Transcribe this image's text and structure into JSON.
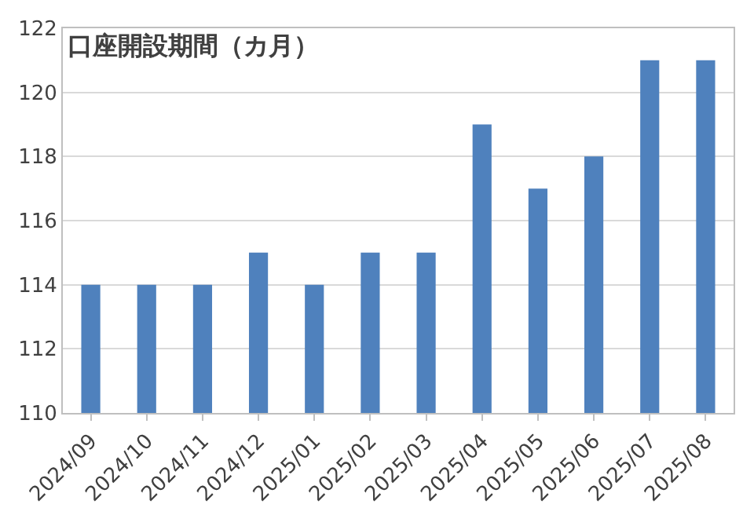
{
  "chart_data": {
    "type": "bar",
    "title": "口座開設期間（カ月）",
    "categories": [
      "2024/09",
      "2024/10",
      "2024/11",
      "2024/12",
      "2025/01",
      "2025/02",
      "2025/03",
      "2025/04",
      "2025/05",
      "2025/06",
      "2025/07",
      "2025/08"
    ],
    "values": [
      114,
      114,
      114,
      115,
      114,
      115,
      115,
      119,
      117,
      118,
      121,
      121
    ],
    "color": "#4f81bd",
    "ylim": [
      110,
      122
    ],
    "yticks": [
      110,
      112,
      114,
      116,
      118,
      120,
      122
    ],
    "grid": "y"
  }
}
